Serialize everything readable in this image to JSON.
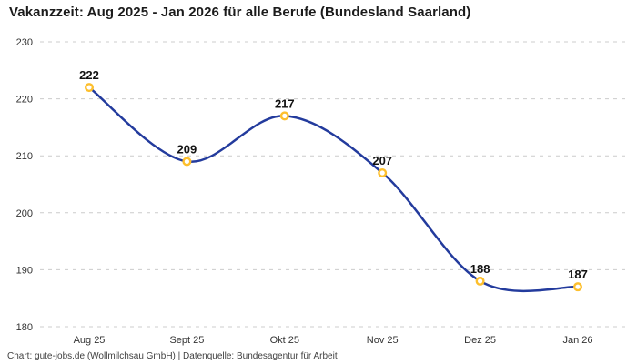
{
  "header": {
    "title": "Vakanzzeit: Aug 2025 - Jan 2026 für alle Berufe (Bundesland Saarland)"
  },
  "footer": {
    "attribution": "Chart: gute-jobs.de (Wollmilchsau GmbH) | Datenquelle: Bundesagentur für Arbeit"
  },
  "chart_data": {
    "type": "line",
    "title": "Vakanzzeit: Aug 2025 - Jan 2026 für alle Berufe (Bundesland Saarland)",
    "categories": [
      "Aug 25",
      "Sept 25",
      "Okt 25",
      "Nov 25",
      "Dez 25",
      "Jan 26"
    ],
    "values": [
      222,
      209,
      217,
      207,
      188,
      187
    ],
    "xlabel": "",
    "ylabel": "",
    "ylim": [
      180,
      230
    ],
    "yticks": [
      230,
      220,
      210,
      200,
      190,
      180
    ],
    "grid": "horizontal-dashed",
    "legend": "none",
    "interpolation": "smooth",
    "data_labels": true,
    "colors": {
      "line": "#233b9d",
      "marker_stroke": "#fdbf2d",
      "marker_fill": "#ffffff",
      "gridline": "#cccccc",
      "tick_label": "#333333",
      "data_label": "#111111"
    }
  }
}
